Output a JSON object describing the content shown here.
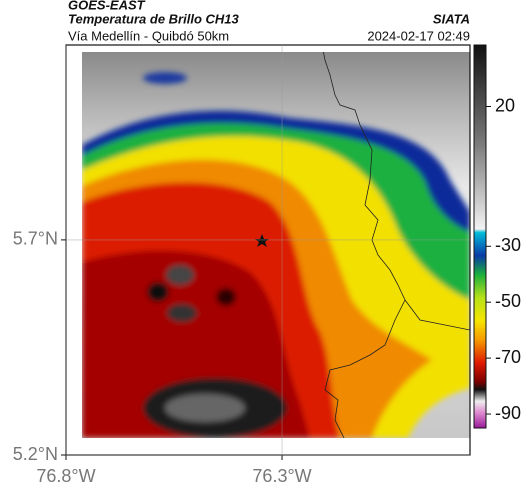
{
  "header": {
    "title": "GOES-EAST",
    "subtitle": "Temperatura de Brillo CH13",
    "source": "SIATA",
    "region": "Vía Medellín - Quibdó 50km",
    "timestamp": "2024-02-17 02:49"
  },
  "map": {
    "xlim": [
      -76.8,
      -75.865
    ],
    "ylim": [
      5.2,
      6.153
    ],
    "xticks": [
      {
        "value": -76.8,
        "label": "76.8°W"
      },
      {
        "value": -76.3,
        "label": "76.3°W"
      }
    ],
    "yticks": [
      {
        "value": 5.2,
        "label": "5.2°N"
      },
      {
        "value": 5.7,
        "label": "5.7°N"
      }
    ],
    "grid": true
  },
  "colorbar": {
    "lim": [
      -95,
      42
    ],
    "ticks": [
      20,
      -30,
      -50,
      -70,
      -90
    ]
  }
}
